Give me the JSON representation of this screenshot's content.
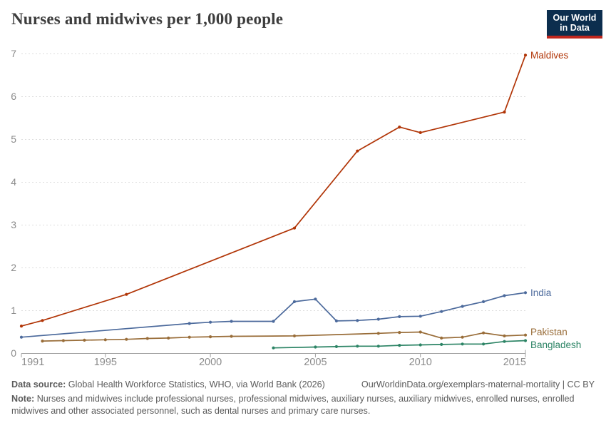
{
  "header": {
    "title": "Nurses and midwives per 1,000 people",
    "logo": {
      "line1": "Our World",
      "line2": "in Data"
    }
  },
  "chart_data": {
    "type": "line",
    "title": "Nurses and midwives per 1,000 people",
    "xlabel": "",
    "ylabel": "",
    "x_range": [
      1991,
      2015
    ],
    "ylim": [
      0,
      7
    ],
    "grid": true,
    "legend_position": "right-end-labels",
    "y_ticks": [
      0,
      1,
      2,
      3,
      4,
      5,
      6,
      7
    ],
    "x_ticks": [
      1991,
      1995,
      2000,
      2005,
      2010,
      2015
    ],
    "x_tick_labels": [
      "1991",
      "1995",
      "2000",
      "2005",
      "2010",
      "2015"
    ],
    "colors": {
      "maldives": "#B13507",
      "india": "#4C6A9C",
      "pakistan": "#996D39",
      "bangladesh": "#2C8465",
      "grid": "#dddddd",
      "axis": "#a1a1a1",
      "tick_text": "#8b8b8b"
    },
    "series": [
      {
        "name": "Maldives",
        "color": "#B13507",
        "label_dy": 0,
        "points": [
          [
            1991,
            0.64
          ],
          [
            1992,
            0.77
          ],
          [
            1996,
            1.38
          ],
          [
            2004,
            2.93
          ],
          [
            2007,
            4.73
          ],
          [
            2009,
            5.29
          ],
          [
            2010,
            5.16
          ],
          [
            2014,
            5.64
          ],
          [
            2015,
            6.97
          ]
        ]
      },
      {
        "name": "India",
        "color": "#4C6A9C",
        "label_dy": 0,
        "points": [
          [
            1991,
            0.38
          ],
          [
            1999,
            0.7
          ],
          [
            2000,
            0.73
          ],
          [
            2001,
            0.75
          ],
          [
            2003,
            0.75
          ],
          [
            2004,
            1.21
          ],
          [
            2005,
            1.27
          ],
          [
            2006,
            0.76
          ],
          [
            2007,
            0.77
          ],
          [
            2008,
            0.8
          ],
          [
            2009,
            0.86
          ],
          [
            2010,
            0.87
          ],
          [
            2011,
            0.98
          ],
          [
            2012,
            1.1
          ],
          [
            2013,
            1.21
          ],
          [
            2014,
            1.35
          ],
          [
            2015,
            1.42
          ]
        ]
      },
      {
        "name": "Pakistan",
        "color": "#996D39",
        "label_dy": -4,
        "points": [
          [
            1992,
            0.29
          ],
          [
            1993,
            0.3
          ],
          [
            1994,
            0.31
          ],
          [
            1995,
            0.32
          ],
          [
            1996,
            0.33
          ],
          [
            1997,
            0.35
          ],
          [
            1998,
            0.36
          ],
          [
            1999,
            0.38
          ],
          [
            2000,
            0.39
          ],
          [
            2001,
            0.4
          ],
          [
            2004,
            0.41
          ],
          [
            2008,
            0.47
          ],
          [
            2009,
            0.49
          ],
          [
            2010,
            0.5
          ],
          [
            2011,
            0.36
          ],
          [
            2012,
            0.38
          ],
          [
            2013,
            0.48
          ],
          [
            2014,
            0.41
          ],
          [
            2015,
            0.43
          ]
        ]
      },
      {
        "name": "Bangladesh",
        "color": "#2C8465",
        "label_dy": 6,
        "points": [
          [
            2003,
            0.13
          ],
          [
            2005,
            0.15
          ],
          [
            2006,
            0.16
          ],
          [
            2007,
            0.17
          ],
          [
            2008,
            0.17
          ],
          [
            2009,
            0.19
          ],
          [
            2010,
            0.2
          ],
          [
            2011,
            0.21
          ],
          [
            2012,
            0.22
          ],
          [
            2013,
            0.22
          ],
          [
            2014,
            0.28
          ],
          [
            2015,
            0.3
          ]
        ]
      }
    ]
  },
  "footer": {
    "data_source_label": "Data source:",
    "data_source_text": "Global Health Workforce Statistics, WHO, via World Bank (2026)",
    "link_text": "OurWorldinData.org/exemplars-maternal-mortality | CC BY",
    "note_label": "Note:",
    "note_text": "Nurses and midwives include professional nurses, professional midwives, auxiliary nurses, auxiliary midwives, enrolled nurses, enrolled midwives and other associated personnel, such as dental nurses and primary care nurses."
  }
}
